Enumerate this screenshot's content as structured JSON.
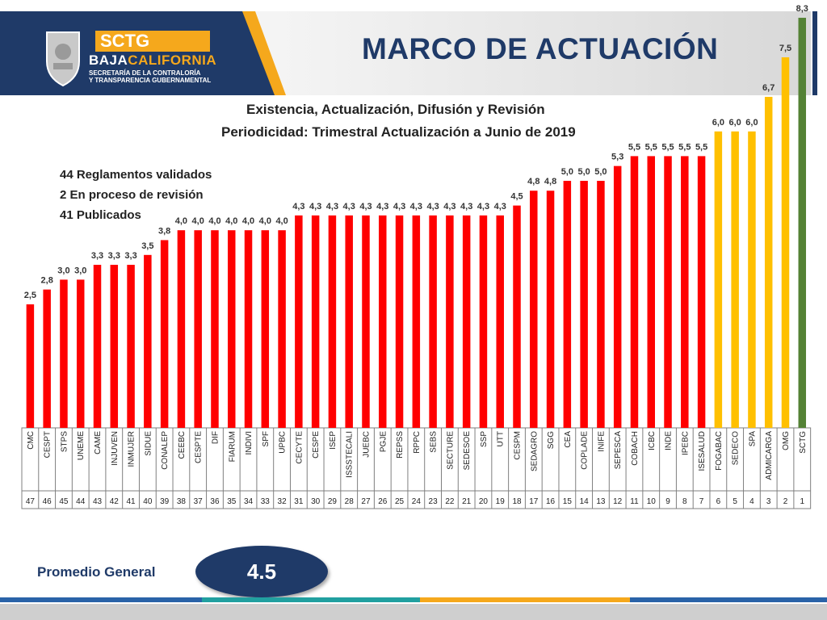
{
  "header": {
    "org_name": "SCTG",
    "state_a": "BAJA",
    "state_b": "CALIFORNIA",
    "org_line1": "SECRETARÍA DE LA CONTRALORÍA",
    "org_line2": "Y TRANSPARENCIA GUBERNAMENTAL",
    "title": "MARCO DE ACTUACIÓN"
  },
  "subtitle": {
    "line1": "Existencia, Actualización, Difusión y Revisión",
    "line2": "Periodicidad: Trimestral  Actualización a Junio de 2019"
  },
  "stats": {
    "line1": "44 Reglamentos validados",
    "line2": "2 En proceso de revisión",
    "line3": "41 Publicados"
  },
  "footer": {
    "avg_label": "Promedio General",
    "avg_value": "4.5"
  },
  "colors": {
    "navy": "#1f3a68",
    "orange": "#f5a81c",
    "red": "#ff0000",
    "yellow": "#ffc000",
    "green": "#548235"
  },
  "chart_data": {
    "type": "bar",
    "title": "",
    "xlabel": "",
    "ylabel": "",
    "grid": false,
    "ylim": [
      0,
      8.3
    ],
    "categories": [
      "CMC",
      "CESPT",
      "STPS",
      "UNEME",
      "CAME",
      "INJUVEN",
      "INMUJER",
      "SIDUE",
      "CONALEP",
      "CEEBC",
      "CESPTE",
      "DIF",
      "FIARUM",
      "INDIVI",
      "SPF",
      "UPBC",
      "CECYTE",
      "CESPE",
      "ISEP",
      "ISSSTECALI",
      "JUEBC",
      "PGJE",
      "REPSS",
      "RPPC",
      "SEBS",
      "SECTURE",
      "SEDESOE",
      "SSP",
      "UTT",
      "CESPM",
      "SEDAGRO",
      "SGG",
      "CEA",
      "COPLADE",
      "INIFE",
      "SEPESCA",
      "COBACH",
      "ICBC",
      "INDE",
      "IPEBC",
      "ISESALUD",
      "FOGABAC",
      "SEDECO",
      "SPA",
      "ADMICARGA",
      "OMG",
      "SCTG"
    ],
    "values": [
      2.5,
      2.8,
      3.0,
      3.0,
      3.3,
      3.3,
      3.3,
      3.5,
      3.8,
      4.0,
      4.0,
      4.0,
      4.0,
      4.0,
      4.0,
      4.0,
      4.3,
      4.3,
      4.3,
      4.3,
      4.3,
      4.3,
      4.3,
      4.3,
      4.3,
      4.3,
      4.3,
      4.3,
      4.3,
      4.5,
      4.8,
      4.8,
      5.0,
      5.0,
      5.0,
      5.3,
      5.5,
      5.5,
      5.5,
      5.5,
      5.5,
      6.0,
      6.0,
      6.0,
      6.7,
      7.5,
      8.3
    ],
    "value_labels": [
      "2,5",
      "2,8",
      "3,0",
      "3,0",
      "3,3",
      "3,3",
      "3,3",
      "3,5",
      "3,8",
      "4,0",
      "4,0",
      "4,0",
      "4,0",
      "4,0",
      "4,0",
      "4,0",
      "4,3",
      "4,3",
      "4,3",
      "4,3",
      "4,3",
      "4,3",
      "4,3",
      "4,3",
      "4,3",
      "4,3",
      "4,3",
      "4,3",
      "4,3",
      "4,5",
      "4,8",
      "4,8",
      "5,0",
      "5,0",
      "5,0",
      "5,3",
      "5,5",
      "5,5",
      "5,5",
      "5,5",
      "5,5",
      "6,0",
      "6,0",
      "6,0",
      "6,7",
      "7,5",
      "8,3"
    ],
    "ranks": [
      "47",
      "46",
      "45",
      "44",
      "43",
      "42",
      "41",
      "40",
      "39",
      "38",
      "37",
      "36",
      "35",
      "34",
      "33",
      "32",
      "31",
      "30",
      "29",
      "28",
      "27",
      "26",
      "25",
      "24",
      "23",
      "22",
      "21",
      "20",
      "19",
      "18",
      "17",
      "16",
      "15",
      "14",
      "13",
      "12",
      "11",
      "10",
      "9",
      "8",
      "7",
      "6",
      "5",
      "4",
      "3",
      "2",
      "1"
    ],
    "bar_colors": [
      "#ff0000",
      "#ff0000",
      "#ff0000",
      "#ff0000",
      "#ff0000",
      "#ff0000",
      "#ff0000",
      "#ff0000",
      "#ff0000",
      "#ff0000",
      "#ff0000",
      "#ff0000",
      "#ff0000",
      "#ff0000",
      "#ff0000",
      "#ff0000",
      "#ff0000",
      "#ff0000",
      "#ff0000",
      "#ff0000",
      "#ff0000",
      "#ff0000",
      "#ff0000",
      "#ff0000",
      "#ff0000",
      "#ff0000",
      "#ff0000",
      "#ff0000",
      "#ff0000",
      "#ff0000",
      "#ff0000",
      "#ff0000",
      "#ff0000",
      "#ff0000",
      "#ff0000",
      "#ff0000",
      "#ff0000",
      "#ff0000",
      "#ff0000",
      "#ff0000",
      "#ff0000",
      "#ffc000",
      "#ffc000",
      "#ffc000",
      "#ffc000",
      "#ffc000",
      "#548235"
    ]
  }
}
